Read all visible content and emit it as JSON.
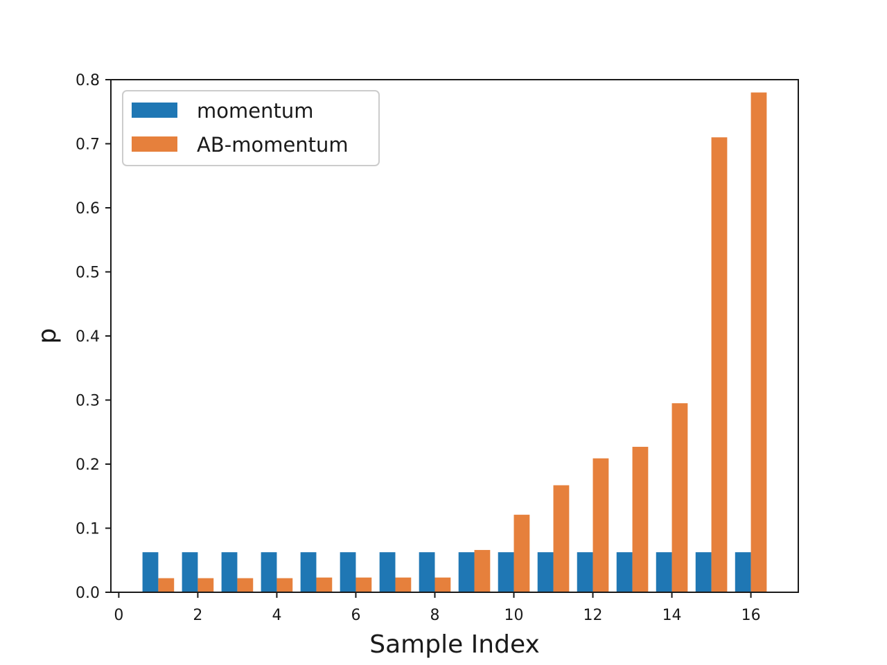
{
  "chart_data": {
    "type": "bar",
    "xlabel": "Sample Index",
    "ylabel": "p",
    "xlim": [
      -0.2,
      17.2
    ],
    "ylim": [
      0,
      0.8
    ],
    "grid": false,
    "legend": "top-left",
    "x": [
      1,
      2,
      3,
      4,
      5,
      6,
      7,
      8,
      9,
      10,
      11,
      12,
      13,
      14,
      15,
      16
    ],
    "xticks": [
      "0",
      "2",
      "4",
      "6",
      "8",
      "10",
      "12",
      "14",
      "16"
    ],
    "yticks": [
      "0.0",
      "0.1",
      "0.2",
      "0.3",
      "0.4",
      "0.5",
      "0.6",
      "0.7",
      "0.8"
    ],
    "series": [
      {
        "name": "momentum",
        "color": "#1f77b4",
        "values": [
          0.0625,
          0.0625,
          0.0625,
          0.0625,
          0.0625,
          0.0625,
          0.0625,
          0.0625,
          0.0625,
          0.0625,
          0.0625,
          0.0625,
          0.0625,
          0.0625,
          0.0625,
          0.0625
        ]
      },
      {
        "name": "AB-momentum",
        "color": "#e6803c",
        "values": [
          0.022,
          0.022,
          0.022,
          0.022,
          0.023,
          0.023,
          0.023,
          0.023,
          0.066,
          0.121,
          0.167,
          0.209,
          0.227,
          0.295,
          0.71,
          0.78
        ]
      }
    ]
  }
}
